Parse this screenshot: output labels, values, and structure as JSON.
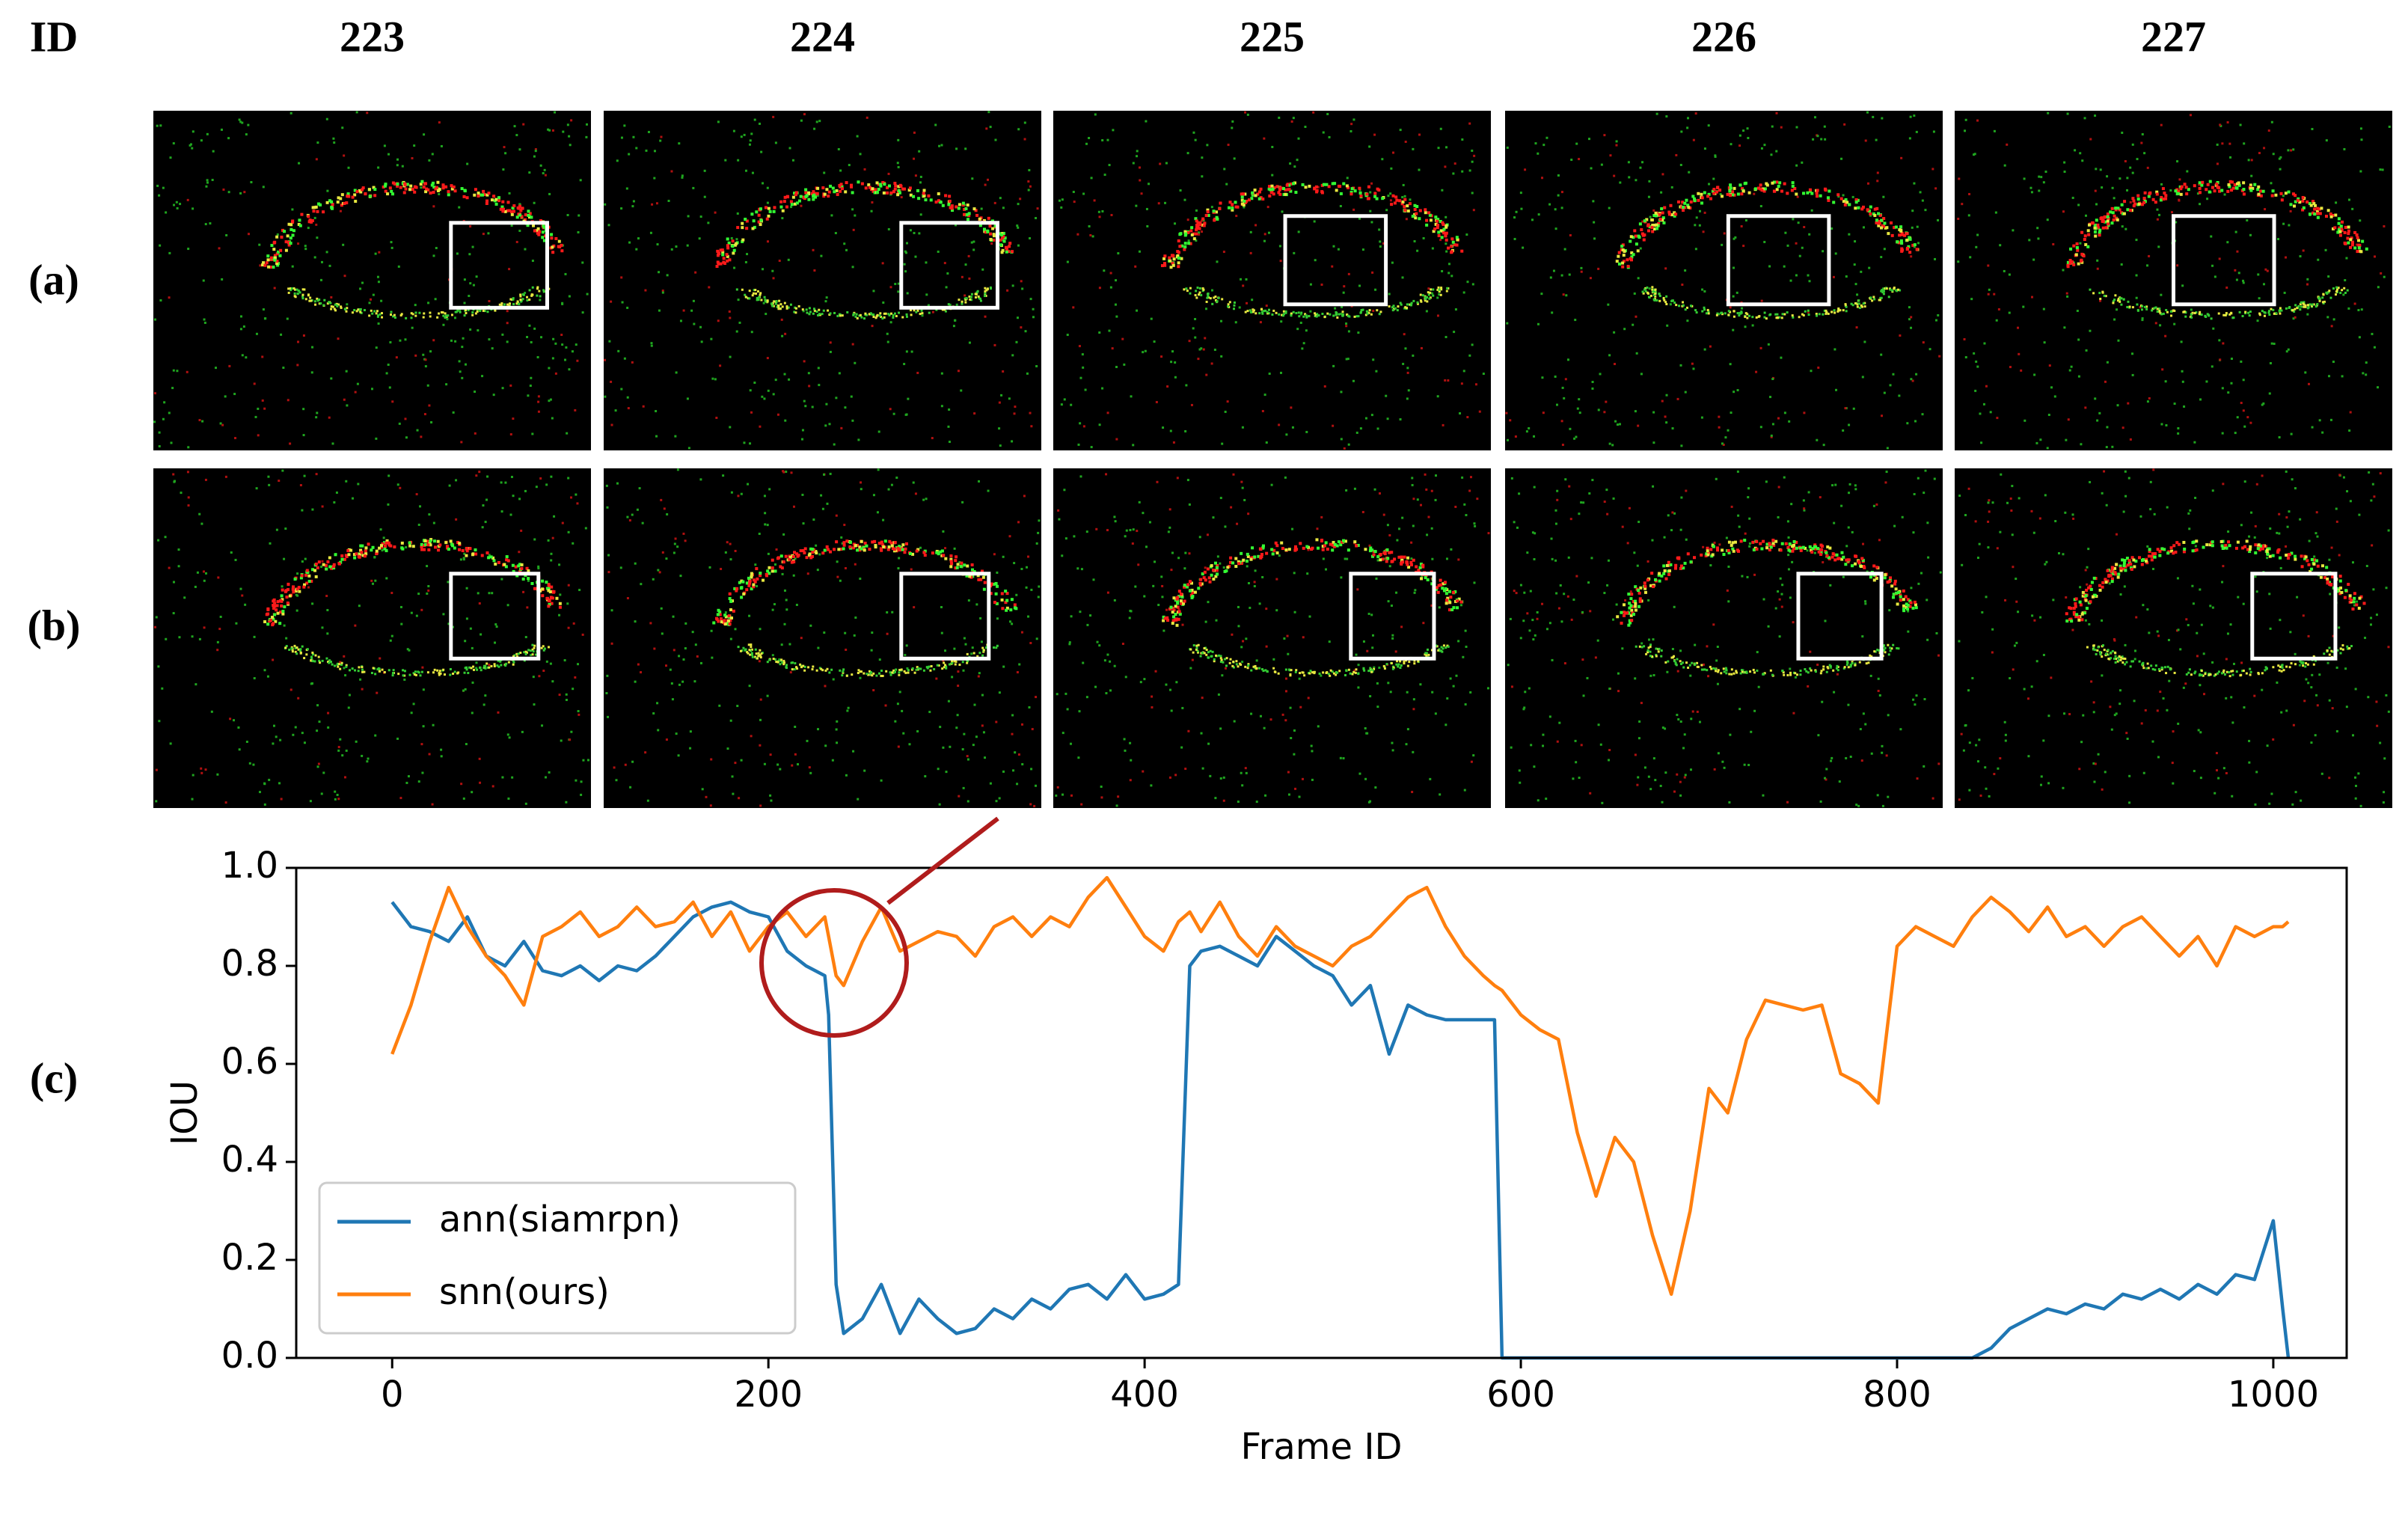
{
  "column_header": "ID",
  "frames": [
    "223",
    "224",
    "225",
    "226",
    "227"
  ],
  "row_labels": [
    "(a)",
    "(b)",
    "(c)"
  ],
  "chart_data": {
    "type": "line",
    "xlabel": "Frame ID",
    "ylabel": "IOU",
    "x": [
      0,
      10,
      20,
      30,
      40,
      50,
      60,
      70,
      80,
      90,
      100,
      110,
      120,
      130,
      140,
      150,
      160,
      170,
      180,
      190,
      200,
      210,
      220,
      230,
      232,
      236,
      240,
      250,
      260,
      270,
      280,
      290,
      300,
      310,
      320,
      330,
      340,
      350,
      360,
      370,
      380,
      390,
      400,
      410,
      418,
      424,
      430,
      440,
      450,
      460,
      470,
      480,
      490,
      500,
      510,
      520,
      530,
      540,
      550,
      560,
      570,
      580,
      586,
      590,
      600,
      610,
      620,
      630,
      640,
      650,
      660,
      670,
      680,
      690,
      700,
      710,
      720,
      730,
      740,
      750,
      760,
      770,
      780,
      790,
      800,
      810,
      820,
      830,
      840,
      850,
      860,
      870,
      880,
      890,
      900,
      910,
      920,
      930,
      940,
      950,
      960,
      970,
      980,
      990,
      1000,
      1005,
      1008
    ],
    "series": [
      {
        "name": "ann(siamrpn)",
        "color": "#1f77b4",
        "values": [
          0.93,
          0.88,
          0.87,
          0.85,
          0.9,
          0.82,
          0.8,
          0.85,
          0.79,
          0.78,
          0.8,
          0.77,
          0.8,
          0.79,
          0.82,
          0.86,
          0.9,
          0.92,
          0.93,
          0.91,
          0.9,
          0.83,
          0.8,
          0.78,
          0.7,
          0.15,
          0.05,
          0.08,
          0.15,
          0.05,
          0.12,
          0.08,
          0.05,
          0.06,
          0.1,
          0.08,
          0.12,
          0.1,
          0.14,
          0.15,
          0.12,
          0.17,
          0.12,
          0.13,
          0.15,
          0.8,
          0.83,
          0.84,
          0.82,
          0.8,
          0.86,
          0.83,
          0.8,
          0.78,
          0.72,
          0.76,
          0.62,
          0.72,
          0.7,
          0.69,
          0.69,
          0.69,
          0.69,
          0,
          0,
          0,
          0,
          0,
          0,
          0,
          0,
          0,
          0,
          0,
          0,
          0,
          0,
          0,
          0,
          0,
          0,
          0,
          0,
          0,
          0,
          0,
          0,
          0,
          0,
          0.02,
          0.06,
          0.08,
          0.1,
          0.09,
          0.11,
          0.1,
          0.13,
          0.12,
          0.14,
          0.12,
          0.15,
          0.13,
          0.17,
          0.16,
          0.28,
          0.1,
          0
        ]
      },
      {
        "name": "snn(ours)",
        "color": "#ff7f0e",
        "values": [
          0.62,
          0.72,
          0.85,
          0.96,
          0.88,
          0.82,
          0.78,
          0.72,
          0.86,
          0.88,
          0.91,
          0.86,
          0.88,
          0.92,
          0.88,
          0.89,
          0.93,
          0.86,
          0.91,
          0.83,
          0.88,
          0.91,
          0.86,
          0.9,
          0.86,
          0.78,
          0.76,
          0.85,
          0.92,
          0.83,
          0.85,
          0.87,
          0.86,
          0.82,
          0.88,
          0.9,
          0.86,
          0.9,
          0.88,
          0.94,
          0.98,
          0.92,
          0.86,
          0.83,
          0.89,
          0.91,
          0.87,
          0.93,
          0.86,
          0.82,
          0.88,
          0.84,
          0.82,
          0.8,
          0.84,
          0.86,
          0.9,
          0.94,
          0.96,
          0.88,
          0.82,
          0.78,
          0.76,
          0.75,
          0.7,
          0.67,
          0.65,
          0.46,
          0.33,
          0.45,
          0.4,
          0.25,
          0.13,
          0.3,
          0.55,
          0.5,
          0.65,
          0.73,
          0.72,
          0.71,
          0.72,
          0.58,
          0.56,
          0.52,
          0.84,
          0.88,
          0.86,
          0.84,
          0.9,
          0.94,
          0.91,
          0.87,
          0.92,
          0.86,
          0.88,
          0.84,
          0.88,
          0.9,
          0.86,
          0.82,
          0.86,
          0.8,
          0.88,
          0.86,
          0.88,
          0.88,
          0.89
        ]
      }
    ],
    "xlim": [
      -51,
      1039
    ],
    "ylim": [
      0,
      1
    ],
    "xticks": [
      0,
      200,
      400,
      600,
      800,
      1000
    ],
    "yticks": [
      {
        "value": 0,
        "label": "0.0"
      },
      0.2,
      0.4,
      0.6,
      0.8,
      {
        "value": 1,
        "label": "1.0"
      }
    ],
    "legend": "lower left"
  }
}
